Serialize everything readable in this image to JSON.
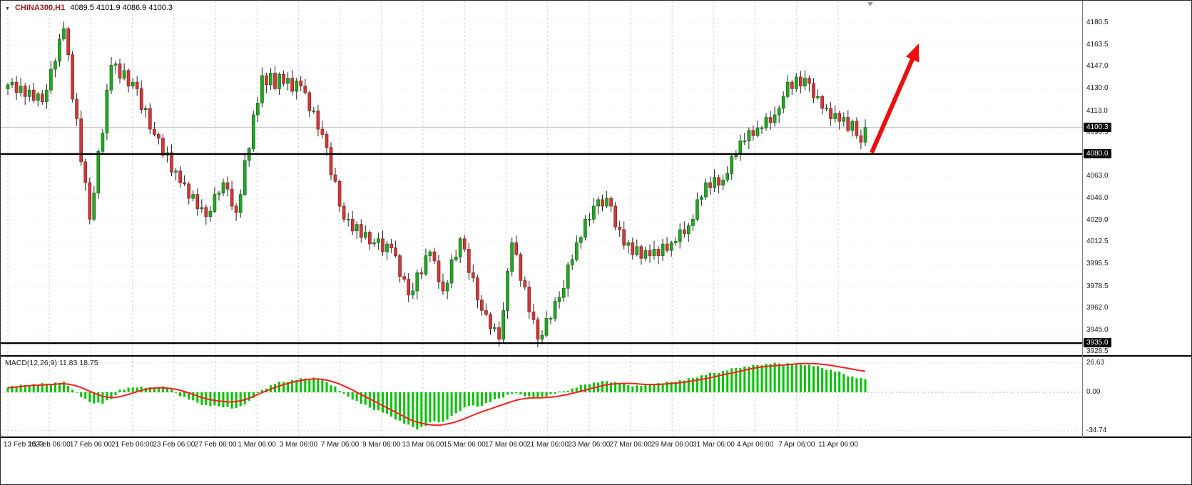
{
  "header": {
    "dropdown_glyph": "▼",
    "symbol": "CHINA300,H1",
    "ohlc": "4089.5 4101.9 4086.9 4100.3"
  },
  "colors": {
    "background": "#ffffff",
    "vgrid": "#d6d6d6",
    "hgrid": "#e7e7e7",
    "up": "#27a427",
    "up_dark": "#0d6b0d",
    "down": "#cb3a3a",
    "down_dark": "#8f1f1f",
    "wick": "#222222",
    "level_line": "#000000",
    "current_price_line": "#b9b9b9",
    "tag_bg": "#050505",
    "tag_text": "#ffffff",
    "axis_text": "#1c1c1c",
    "symbol_text": "#9b1c1c",
    "macd_hist": "#00c200",
    "macd_signal": "#ff1e1e",
    "arrow": "#ee0c0c",
    "shift_marker": "#9a9a9a"
  },
  "chart_data": {
    "type": "candlestick",
    "symbol": "CHINA300",
    "timeframe": "H1",
    "title": "CHINA300,H1",
    "ohlc_readout": {
      "open": 4089.5,
      "high": 4101.9,
      "low": 4086.9,
      "close": 4100.3
    },
    "current_price": 4100.3,
    "ylim": [
      3928.5,
      4180.5
    ],
    "price_ticks": [
      4180.5,
      4163.5,
      4147.0,
      4130.0,
      4113.0,
      4096.5,
      4080.0,
      4063.0,
      4046.0,
      4029.0,
      4012.5,
      3995.5,
      3978.5,
      3962.0,
      3945.0,
      3928.5
    ],
    "hlines": [
      {
        "price": 4080.0,
        "label": "4080.0",
        "role": "resistance"
      },
      {
        "price": 3935.0,
        "label": "3935.0",
        "role": "support"
      }
    ],
    "annotation_arrow": {
      "direction": "up-right",
      "meaning": "projected breakout above 4080 level"
    },
    "time_ticks": [
      "13 Feb 2023",
      "15 Feb 06:00",
      "17 Feb 06:00",
      "21 Feb 06:00",
      "23 Feb 06:00",
      "27 Feb 06:00",
      "1 Mar 06:00",
      "3 Mar 06:00",
      "7 Mar 06:00",
      "9 Mar 06:00",
      "13 Mar 06:00",
      "15 Mar 06:00",
      "17 Mar 06:00",
      "21 Mar 06:00",
      "23 Mar 06:00",
      "27 Mar 06:00",
      "29 Mar 06:00",
      "31 Mar 06:00",
      "4 Apr 06:00",
      "7 Apr 06:00",
      "11 Apr 06:00"
    ],
    "first_open": 4130,
    "closes": [
      4133,
      4135,
      4127,
      4132,
      4124,
      4129,
      4121,
      4126,
      4120,
      4129,
      4145,
      4151,
      4168,
      4176,
      4156,
      4122,
      4107,
      4074,
      4058,
      4030,
      4050,
      4082,
      4096,
      4129,
      4148,
      4149,
      4138,
      4144,
      4132,
      4135,
      4130,
      4114,
      4115,
      4099,
      4095,
      4092,
      4079,
      4081,
      4066,
      4067,
      4058,
      4057,
      4046,
      4049,
      4038,
      4039,
      4032,
      4036,
      4049,
      4050,
      4058,
      4053,
      4040,
      4035,
      4049,
      4075,
      4084,
      4110,
      4119,
      4140,
      4133,
      4142,
      4130,
      4141,
      4134,
      4138,
      4128,
      4136,
      4132,
      4127,
      4113,
      4113,
      4099,
      4095,
      4085,
      4064,
      4059,
      4040,
      4030,
      4030,
      4021,
      4026,
      4016,
      4020,
      4011,
      4012,
      4015,
      4005,
      4011,
      4008,
      4002,
      3986,
      3984,
      3972,
      3975,
      3989,
      3988,
      4002,
      4005,
      3998,
      3982,
      3975,
      3981,
      3999,
      4001,
      4015,
      4007,
      3989,
      3985,
      3968,
      3960,
      3957,
      3946,
      3947,
      3938,
      3960,
      3990,
      4012,
      4003,
      3983,
      3978,
      3959,
      3953,
      3938,
      3941,
      3954,
      3954,
      3967,
      3970,
      3977,
      3995,
      3999,
      4012,
      4016,
      4030,
      4030,
      4040,
      4045,
      4040,
      4046,
      4040,
      4024,
      4022,
      4010,
      4012,
      4003,
      4009,
      4000,
      4006,
      4002,
      4007,
      4002,
      4011,
      4006,
      4012,
      4013,
      4022,
      4019,
      4025,
      4030,
      4045,
      4047,
      4058,
      4054,
      4062,
      4056,
      4060,
      4065,
      4078,
      4080,
      4090,
      4090,
      4098,
      4094,
      4100,
      4100,
      4108,
      4104,
      4110,
      4115,
      4124,
      4135,
      4130,
      4139,
      4132,
      4138,
      4134,
      4123,
      4124,
      4115,
      4115,
      4107,
      4111,
      4105,
      4108,
      4098,
      4105,
      4094,
      4089,
      4100.3
    ],
    "macd": {
      "title": "MACD(12,26,9) 11.83 18.75",
      "macd_value": 11.83,
      "signal_value": 18.75,
      "scale_labels": [
        "26.63",
        "0.00",
        "-34.74"
      ],
      "scale_values": [
        26.63,
        0,
        -34.74
      ],
      "histogram_anchors": [
        [
          0,
          5
        ],
        [
          5,
          7
        ],
        [
          10,
          8
        ],
        [
          13,
          9
        ],
        [
          15,
          3
        ],
        [
          17,
          -4
        ],
        [
          19,
          -9
        ],
        [
          22,
          -10
        ],
        [
          24,
          -6
        ],
        [
          26,
          2
        ],
        [
          30,
          5
        ],
        [
          33,
          4
        ],
        [
          36,
          5
        ],
        [
          38,
          2
        ],
        [
          40,
          -3
        ],
        [
          43,
          -8
        ],
        [
          46,
          -12
        ],
        [
          50,
          -13
        ],
        [
          53,
          -15
        ],
        [
          56,
          -8
        ],
        [
          59,
          2
        ],
        [
          62,
          8
        ],
        [
          65,
          10
        ],
        [
          68,
          12
        ],
        [
          71,
          13
        ],
        [
          73,
          11
        ],
        [
          76,
          5
        ],
        [
          78,
          -2
        ],
        [
          81,
          -8
        ],
        [
          84,
          -14
        ],
        [
          87,
          -18
        ],
        [
          90,
          -24
        ],
        [
          93,
          -30
        ],
        [
          95,
          -33
        ],
        [
          97,
          -30
        ],
        [
          99,
          -26
        ],
        [
          101,
          -27
        ],
        [
          103,
          -22
        ],
        [
          105,
          -16
        ],
        [
          107,
          -12
        ],
        [
          109,
          -13
        ],
        [
          111,
          -10
        ],
        [
          113,
          -7
        ],
        [
          115,
          -4
        ],
        [
          117,
          -1
        ],
        [
          119,
          -2
        ],
        [
          121,
          -4
        ],
        [
          123,
          -5
        ],
        [
          125,
          -3
        ],
        [
          127,
          -1
        ],
        [
          129,
          1
        ],
        [
          131,
          3
        ],
        [
          133,
          6
        ],
        [
          135,
          8
        ],
        [
          137,
          9
        ],
        [
          139,
          10
        ],
        [
          141,
          9
        ],
        [
          143,
          7
        ],
        [
          145,
          6
        ],
        [
          147,
          6
        ],
        [
          149,
          7
        ],
        [
          151,
          8
        ],
        [
          153,
          9
        ],
        [
          155,
          10
        ],
        [
          157,
          11
        ],
        [
          159,
          13
        ],
        [
          161,
          15
        ],
        [
          163,
          17
        ],
        [
          165,
          18
        ],
        [
          167,
          20
        ],
        [
          169,
          22
        ],
        [
          171,
          23
        ],
        [
          173,
          24
        ],
        [
          175,
          25
        ],
        [
          177,
          26
        ],
        [
          179,
          26
        ],
        [
          181,
          26
        ],
        [
          183,
          25
        ],
        [
          185,
          25
        ],
        [
          187,
          24
        ],
        [
          189,
          22
        ],
        [
          191,
          20
        ],
        [
          193,
          18
        ],
        [
          195,
          15
        ],
        [
          197,
          13
        ],
        [
          199,
          11.83
        ]
      ],
      "signal_anchors": [
        [
          0,
          4
        ],
        [
          5,
          6
        ],
        [
          10,
          7
        ],
        [
          13,
          8
        ],
        [
          16,
          6
        ],
        [
          19,
          1
        ],
        [
          22,
          -4
        ],
        [
          25,
          -5
        ],
        [
          28,
          -2
        ],
        [
          31,
          2
        ],
        [
          34,
          4
        ],
        [
          37,
          4
        ],
        [
          40,
          2
        ],
        [
          43,
          -2
        ],
        [
          46,
          -6
        ],
        [
          49,
          -8
        ],
        [
          52,
          -9
        ],
        [
          55,
          -7
        ],
        [
          58,
          -2
        ],
        [
          61,
          3
        ],
        [
          64,
          7
        ],
        [
          67,
          10
        ],
        [
          70,
          12
        ],
        [
          73,
          12
        ],
        [
          76,
          9
        ],
        [
          79,
          4
        ],
        [
          82,
          -2
        ],
        [
          85,
          -8
        ],
        [
          88,
          -14
        ],
        [
          91,
          -20
        ],
        [
          94,
          -26
        ],
        [
          97,
          -29
        ],
        [
          100,
          -30
        ],
        [
          103,
          -28
        ],
        [
          106,
          -24
        ],
        [
          109,
          -19
        ],
        [
          112,
          -15
        ],
        [
          115,
          -11
        ],
        [
          118,
          -7
        ],
        [
          121,
          -5
        ],
        [
          124,
          -5
        ],
        [
          127,
          -4
        ],
        [
          130,
          -2
        ],
        [
          133,
          1
        ],
        [
          136,
          4
        ],
        [
          139,
          7
        ],
        [
          142,
          8
        ],
        [
          145,
          8
        ],
        [
          148,
          7
        ],
        [
          151,
          7
        ],
        [
          154,
          8
        ],
        [
          157,
          9
        ],
        [
          160,
          11
        ],
        [
          163,
          13
        ],
        [
          166,
          16
        ],
        [
          169,
          18
        ],
        [
          172,
          21
        ],
        [
          175,
          23
        ],
        [
          178,
          24
        ],
        [
          181,
          25
        ],
        [
          184,
          26
        ],
        [
          187,
          26
        ],
        [
          190,
          25
        ],
        [
          193,
          23
        ],
        [
          196,
          21
        ],
        [
          199,
          18.75
        ]
      ]
    }
  }
}
